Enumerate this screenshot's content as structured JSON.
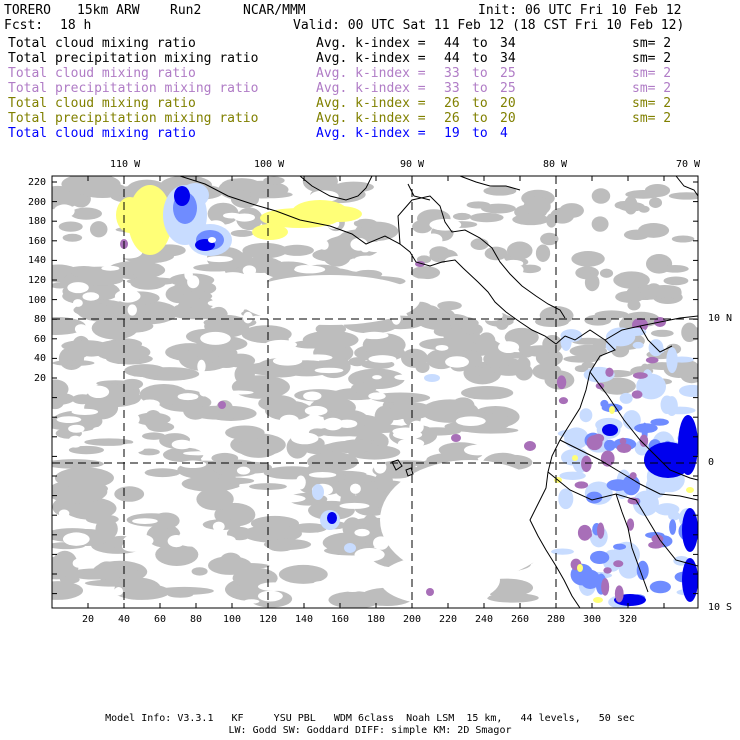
{
  "header": {
    "model": "TORERO",
    "resolution": "15km ARW",
    "run": "Run2",
    "org": "NCAR/MMM",
    "init": "Init: 06 UTC Fri 10 Feb 12",
    "fcst_label": "Fcst:",
    "fcst_value": "18 h",
    "valid": "Valid: 00 UTC Sat 11 Feb 12 (18 CST Fri 10 Feb 12)"
  },
  "legend": [
    {
      "field": "Total cloud mixing ratio",
      "avg_label": "Avg. k-index =",
      "k_from": "44",
      "to_label": "to",
      "k_to": "34",
      "smooth": "sm= 2",
      "color": "#000000"
    },
    {
      "field": "Total precipitation mixing ratio",
      "avg_label": "Avg. k-index =",
      "k_from": "44",
      "to_label": "to",
      "k_to": "34",
      "smooth": "sm= 2",
      "color": "#000000"
    },
    {
      "field": "Total cloud mixing ratio",
      "avg_label": "Avg. k-index =",
      "k_from": "33",
      "to_label": "to",
      "k_to": "25",
      "smooth": "sm= 2",
      "color": "#b07cc6"
    },
    {
      "field": "Total precipitation mixing ratio",
      "avg_label": "Avg. k-index =",
      "k_from": "33",
      "to_label": "to",
      "k_to": "25",
      "smooth": "sm= 2",
      "color": "#b07cc6"
    },
    {
      "field": "Total cloud mixing ratio",
      "avg_label": "Avg. k-index =",
      "k_from": "26",
      "to_label": "to",
      "k_to": "20",
      "smooth": "sm= 2",
      "color": "#808000"
    },
    {
      "field": "Total precipitation mixing ratio",
      "avg_label": "Avg. k-index =",
      "k_from": "26",
      "to_label": "to",
      "k_to": "20",
      "smooth": "sm= 2",
      "color": "#808000"
    },
    {
      "field": "Total cloud mixing ratio",
      "avg_label": "Avg. k-index =",
      "k_from": "19",
      "to_label": "to",
      "k_to": "4",
      "smooth": "",
      "color": "#0000ff"
    }
  ],
  "map": {
    "lon_labels": [
      "110 W",
      "100 W",
      "90 W",
      "80 W",
      "70 W"
    ],
    "lat_labels": [
      "10 N",
      "0",
      "10 S"
    ],
    "x_ticks": [
      "20",
      "40",
      "60",
      "80",
      "100",
      "120",
      "140",
      "160",
      "180",
      "200",
      "220",
      "240",
      "260",
      "280",
      "300",
      "320"
    ],
    "y_ticks": [
      "220",
      "200",
      "180",
      "160",
      "140",
      "120",
      "100",
      "80",
      "60",
      "40",
      "20"
    ],
    "colors": {
      "cloud_gray": "#bdbdbd",
      "light_blue": "#c8dcff",
      "mid_blue": "#6f8cff",
      "deep_blue": "#0000ee",
      "purple": "#a86fb8",
      "yellow": "#ffff77"
    }
  },
  "footer": {
    "line1": "Model Info: V3.3.1   KF     YSU PBL   WDM 6class  Noah LSM  15 km,   44 levels,   50 sec",
    "line2": "LW: Godd SW: Goddard DIFF: simple KM: 2D Smagor"
  }
}
